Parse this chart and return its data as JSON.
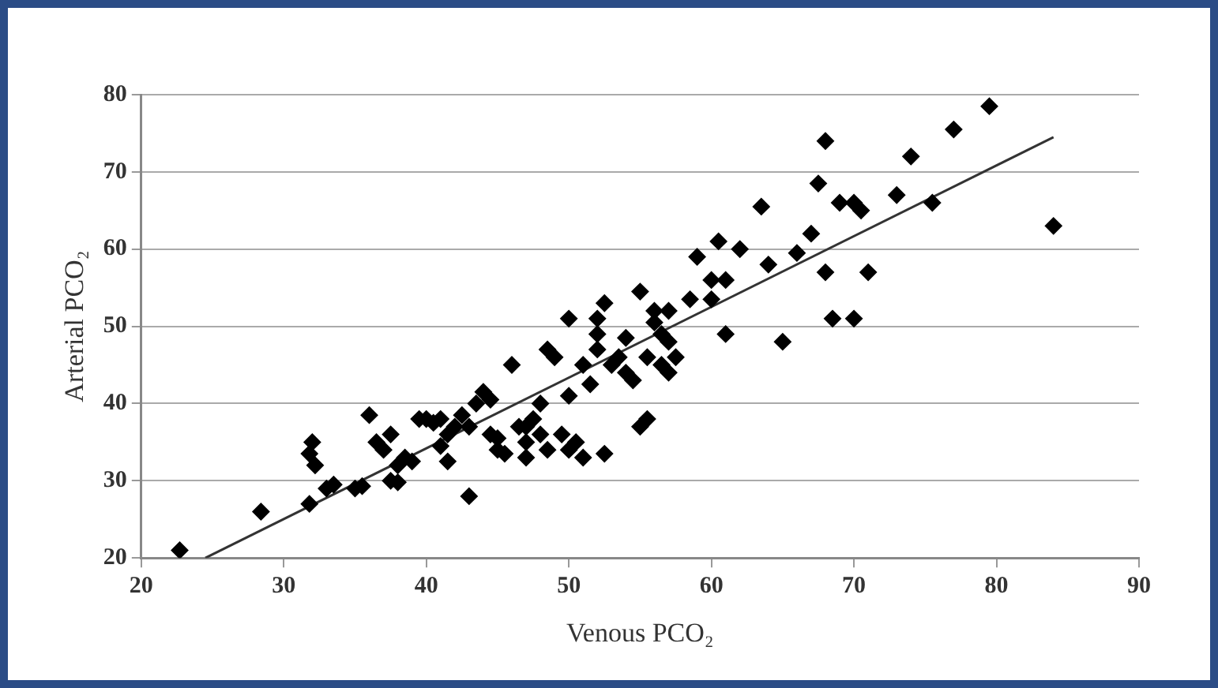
{
  "chart_data": {
    "type": "scatter",
    "xlabel": "Venous PCO₂",
    "ylabel": "Arterial PCO₂",
    "xlim": [
      20,
      90
    ],
    "xticks": [
      20,
      30,
      40,
      50,
      60,
      70,
      80,
      90
    ],
    "ylim": [
      20,
      80
    ],
    "yticks": [
      20,
      30,
      40,
      50,
      60,
      70,
      80
    ],
    "grid": "y",
    "legend": false,
    "marker": "diamond",
    "series": [
      {
        "color": "#000000",
        "x": [
          22.7,
          28.4,
          31.8,
          31.8,
          32,
          32.2,
          33,
          33.5,
          35,
          35.5,
          36,
          36.5,
          37,
          37.5,
          37.5,
          38,
          38,
          38.5,
          39,
          39.5,
          40,
          40.5,
          41,
          41,
          41.5,
          41.5,
          42,
          42.5,
          43,
          43,
          43.5,
          44,
          44.5,
          44.5,
          45,
          45,
          45.5,
          46,
          46.5,
          47,
          47,
          47,
          47.5,
          48,
          48,
          48.5,
          48.5,
          49,
          49.5,
          50,
          50,
          50,
          50.5,
          51,
          51,
          51.5,
          52,
          52,
          52,
          52.5,
          52.5,
          53,
          53.5,
          54,
          54,
          54.5,
          55,
          55,
          55.5,
          55.5,
          56,
          56,
          56.5,
          56.5,
          57,
          57,
          57,
          57.5,
          58.5,
          59,
          60,
          60,
          60.5,
          61,
          61,
          62,
          63.5,
          64,
          65,
          66,
          67,
          67.5,
          68,
          68,
          68.5,
          69,
          70,
          70,
          70.5,
          71,
          73,
          74,
          75.5,
          77,
          79.5,
          84
        ],
        "values": [
          21,
          26,
          27,
          33.5,
          35,
          32,
          29,
          29.5,
          29,
          29.3,
          38.5,
          35,
          34,
          36,
          30,
          29.8,
          32,
          33,
          32.5,
          38,
          38,
          37.5,
          38,
          34.5,
          36,
          32.5,
          37,
          38.5,
          28,
          37,
          40,
          41.5,
          40.5,
          36,
          34,
          35.5,
          33.5,
          45,
          37,
          37,
          35,
          33,
          38,
          36,
          40,
          34,
          47,
          46,
          36,
          34,
          41,
          51,
          35,
          33,
          45,
          42.5,
          47,
          49,
          51,
          53,
          33.5,
          45,
          46,
          44,
          48.5,
          43,
          54.5,
          37,
          38,
          46,
          50.5,
          52,
          49,
          45,
          44,
          52,
          48,
          46,
          53.5,
          59,
          56,
          53.5,
          61,
          56,
          49,
          60,
          65.5,
          58,
          48,
          59.5,
          62,
          68.5,
          74,
          57,
          51,
          66,
          51,
          66,
          65,
          57,
          67,
          72,
          66,
          75.5,
          78.5,
          63
        ]
      },
      {
        "type": "line",
        "color": "#333333",
        "marker": "none",
        "x": [
          24.5,
          84
        ],
        "values": [
          20,
          74.5
        ]
      }
    ]
  }
}
